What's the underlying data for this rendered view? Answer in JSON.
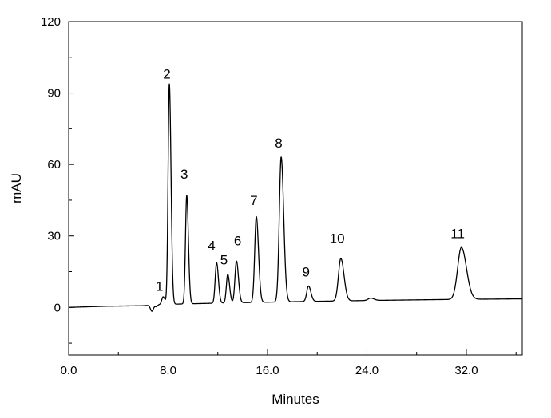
{
  "chart_data": {
    "type": "line",
    "xlabel": "Minutes",
    "ylabel": "mAU",
    "xlim": [
      0,
      36.5
    ],
    "ylim": [
      -20,
      120
    ],
    "x_ticks": [
      0,
      8,
      16,
      24,
      32
    ],
    "x_tick_labels": [
      "0.0",
      "8.0",
      "16.0",
      "24.0",
      "32.0"
    ],
    "x_minor_ticks": [
      4,
      12,
      20,
      28,
      36
    ],
    "y_ticks": [
      0,
      30,
      60,
      90,
      120
    ],
    "y_tick_labels": [
      "0",
      "30",
      "60",
      "90",
      "120"
    ],
    "y_minor_ticks": [
      -15,
      15,
      45,
      75,
      105
    ],
    "grid": false,
    "line_color": "#000000",
    "baseline": [
      {
        "x": 0,
        "y": 0
      },
      {
        "x": 3,
        "y": 0.5
      },
      {
        "x": 6,
        "y": 0.7
      },
      {
        "x": 7.2,
        "y": 1.2
      },
      {
        "x": 12,
        "y": 1.8
      },
      {
        "x": 18,
        "y": 2.4
      },
      {
        "x": 24,
        "y": 2.9
      },
      {
        "x": 30,
        "y": 3.3
      },
      {
        "x": 36.5,
        "y": 3.6
      }
    ],
    "dips": [
      {
        "x": 6.7,
        "depth": -2.6,
        "width": 0.12
      },
      {
        "x": 7.05,
        "depth": -0.8,
        "width": 0.1
      }
    ],
    "peaks": [
      {
        "label": "1",
        "x": 7.6,
        "height": 3.2,
        "width": 0.11
      },
      {
        "label": "2",
        "x": 8.1,
        "height": 92.5,
        "width": 0.1
      },
      {
        "label": "3",
        "x": 9.5,
        "height": 45.5,
        "width": 0.1
      },
      {
        "label": "4",
        "x": 11.9,
        "height": 17.0,
        "width": 0.11
      },
      {
        "label": "5",
        "x": 12.8,
        "height": 12.0,
        "width": 0.11
      },
      {
        "label": "6",
        "x": 13.5,
        "height": 17.5,
        "width": 0.12
      },
      {
        "label": "7",
        "x": 15.1,
        "height": 36.0,
        "width": 0.13
      },
      {
        "label": "8",
        "x": 17.1,
        "height": 60.8,
        "width": 0.15
      },
      {
        "label": "9",
        "x": 19.3,
        "height": 6.5,
        "width": 0.14
      },
      {
        "label": "10",
        "x": 21.9,
        "height": 17.8,
        "width": 0.19
      },
      {
        "label": "",
        "x": 24.3,
        "height": 1.0,
        "width": 0.2
      },
      {
        "label": "11",
        "x": 31.6,
        "height": 21.8,
        "width": 0.3
      }
    ],
    "peak_labels": [
      {
        "text": "1",
        "x": 7.3,
        "y": 7
      },
      {
        "text": "2",
        "x": 7.9,
        "y": 96
      },
      {
        "text": "3",
        "x": 9.3,
        "y": 54
      },
      {
        "text": "4",
        "x": 11.5,
        "y": 24
      },
      {
        "text": "5",
        "x": 12.5,
        "y": 18
      },
      {
        "text": "6",
        "x": 13.6,
        "y": 26
      },
      {
        "text": "7",
        "x": 14.9,
        "y": 43
      },
      {
        "text": "8",
        "x": 16.9,
        "y": 67
      },
      {
        "text": "9",
        "x": 19.1,
        "y": 13
      },
      {
        "text": "10",
        "x": 21.6,
        "y": 27
      },
      {
        "text": "11",
        "x": 31.3,
        "y": 29
      }
    ]
  }
}
